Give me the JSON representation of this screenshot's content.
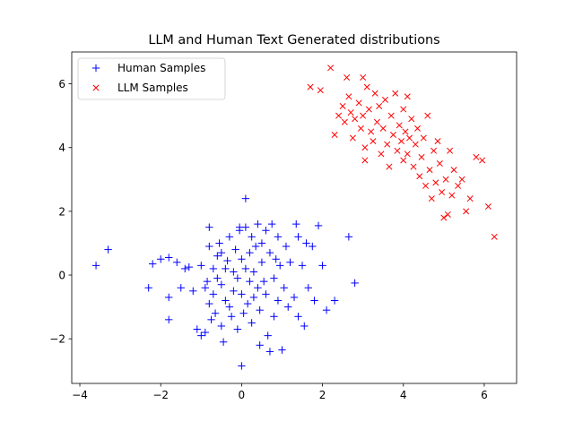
{
  "chart_data": {
    "type": "scatter",
    "title": "LLM and Human Text Generated distributions",
    "xlabel": "",
    "ylabel": "",
    "xlim": [
      -4.2,
      6.8
    ],
    "ylim": [
      -3.4,
      7.0
    ],
    "xticks": [
      -4,
      -2,
      0,
      2,
      4,
      6
    ],
    "yticks": [
      -2,
      0,
      2,
      4,
      6
    ],
    "xtick_labels": [
      "−4",
      "−2",
      "0",
      "2",
      "4",
      "6"
    ],
    "ytick_labels": [
      "−2",
      "0",
      "2",
      "4",
      "6"
    ],
    "grid": false,
    "legend_position": "top-left",
    "series": [
      {
        "name": "Human Samples",
        "marker": "+",
        "color": "#0000ff",
        "points": [
          [
            -3.6,
            0.3
          ],
          [
            -3.3,
            0.8
          ],
          [
            -2.3,
            -0.4
          ],
          [
            -2.2,
            0.35
          ],
          [
            -2.0,
            0.5
          ],
          [
            -1.8,
            0.55
          ],
          [
            -1.8,
            -0.7
          ],
          [
            -1.8,
            -1.4
          ],
          [
            -1.6,
            0.4
          ],
          [
            -1.5,
            -0.4
          ],
          [
            -1.4,
            0.2
          ],
          [
            -1.3,
            0.25
          ],
          [
            -1.2,
            -0.5
          ],
          [
            -1.1,
            -1.7
          ],
          [
            -1.0,
            0.3
          ],
          [
            -1.0,
            -1.9
          ],
          [
            -0.9,
            -0.4
          ],
          [
            -0.9,
            -1.8
          ],
          [
            -0.85,
            -0.2
          ],
          [
            -0.8,
            1.5
          ],
          [
            -0.8,
            0.9
          ],
          [
            -0.8,
            -0.9
          ],
          [
            -0.75,
            -1.4
          ],
          [
            -0.7,
            0.2
          ],
          [
            -0.7,
            -0.6
          ],
          [
            -0.65,
            -1.2
          ],
          [
            -0.6,
            0.6
          ],
          [
            -0.6,
            -0.1
          ],
          [
            -0.55,
            1.0
          ],
          [
            -0.5,
            0.7
          ],
          [
            -0.5,
            -0.3
          ],
          [
            -0.5,
            -1.6
          ],
          [
            -0.45,
            -2.1
          ],
          [
            -0.4,
            0.2
          ],
          [
            -0.4,
            -0.8
          ],
          [
            -0.35,
            0.45
          ],
          [
            -0.3,
            1.2
          ],
          [
            -0.3,
            -1.0
          ],
          [
            -0.25,
            -1.3
          ],
          [
            -0.2,
            0.1
          ],
          [
            -0.2,
            -0.5
          ],
          [
            -0.15,
            0.8
          ],
          [
            -0.1,
            -0.1
          ],
          [
            -0.1,
            -1.7
          ],
          [
            -0.05,
            1.5
          ],
          [
            -0.05,
            1.4
          ],
          [
            0.0,
            0.5
          ],
          [
            0.0,
            -0.6
          ],
          [
            0.0,
            -2.85
          ],
          [
            0.05,
            -1.2
          ],
          [
            0.1,
            1.5
          ],
          [
            0.1,
            0.2
          ],
          [
            0.1,
            2.4
          ],
          [
            0.15,
            -0.9
          ],
          [
            0.2,
            0.7
          ],
          [
            0.2,
            -0.2
          ],
          [
            0.25,
            1.2
          ],
          [
            0.25,
            -1.5
          ],
          [
            0.3,
            0.1
          ],
          [
            0.3,
            -0.7
          ],
          [
            0.35,
            0.9
          ],
          [
            0.4,
            1.6
          ],
          [
            0.4,
            -0.4
          ],
          [
            0.45,
            -1.1
          ],
          [
            0.45,
            -2.2
          ],
          [
            0.5,
            0.4
          ],
          [
            0.5,
            1.0
          ],
          [
            0.55,
            -0.2
          ],
          [
            0.6,
            1.4
          ],
          [
            0.6,
            -0.6
          ],
          [
            0.65,
            -1.9
          ],
          [
            0.7,
            0.7
          ],
          [
            0.7,
            -2.4
          ],
          [
            0.75,
            1.6
          ],
          [
            0.8,
            -0.1
          ],
          [
            0.8,
            -1.3
          ],
          [
            0.85,
            0.5
          ],
          [
            0.9,
            1.2
          ],
          [
            0.9,
            -0.8
          ],
          [
            0.95,
            0.3
          ],
          [
            1.0,
            -2.35
          ],
          [
            1.05,
            -0.4
          ],
          [
            1.1,
            0.9
          ],
          [
            1.15,
            -1.0
          ],
          [
            1.2,
            0.4
          ],
          [
            1.3,
            -0.7
          ],
          [
            1.35,
            1.6
          ],
          [
            1.4,
            1.2
          ],
          [
            1.4,
            -1.3
          ],
          [
            1.5,
            0.3
          ],
          [
            1.55,
            -1.6
          ],
          [
            1.6,
            1.0
          ],
          [
            1.65,
            -0.4
          ],
          [
            1.75,
            0.9
          ],
          [
            1.8,
            -0.8
          ],
          [
            1.9,
            1.55
          ],
          [
            2.0,
            0.3
          ],
          [
            2.1,
            -1.1
          ],
          [
            2.3,
            -0.8
          ],
          [
            2.65,
            1.2
          ],
          [
            2.8,
            -0.25
          ]
        ]
      },
      {
        "name": "LLM Samples",
        "marker": "x",
        "color": "#ff0000",
        "points": [
          [
            1.7,
            5.9
          ],
          [
            1.95,
            5.8
          ],
          [
            2.2,
            6.5
          ],
          [
            2.3,
            4.4
          ],
          [
            2.4,
            5.0
          ],
          [
            2.5,
            5.3
          ],
          [
            2.55,
            4.8
          ],
          [
            2.6,
            6.2
          ],
          [
            2.65,
            5.6
          ],
          [
            2.7,
            5.1
          ],
          [
            2.75,
            4.3
          ],
          [
            2.8,
            4.9
          ],
          [
            2.9,
            5.4
          ],
          [
            2.95,
            4.6
          ],
          [
            3.0,
            6.2
          ],
          [
            3.0,
            5.0
          ],
          [
            3.05,
            4.0
          ],
          [
            3.05,
            3.6
          ],
          [
            3.1,
            5.9
          ],
          [
            3.15,
            5.2
          ],
          [
            3.2,
            4.5
          ],
          [
            3.25,
            4.2
          ],
          [
            3.3,
            5.7
          ],
          [
            3.35,
            4.8
          ],
          [
            3.4,
            5.3
          ],
          [
            3.45,
            3.8
          ],
          [
            3.5,
            4.6
          ],
          [
            3.55,
            5.5
          ],
          [
            3.6,
            4.1
          ],
          [
            3.65,
            3.4
          ],
          [
            3.7,
            5.0
          ],
          [
            3.75,
            4.4
          ],
          [
            3.8,
            5.7
          ],
          [
            3.85,
            3.9
          ],
          [
            3.9,
            4.7
          ],
          [
            3.95,
            4.2
          ],
          [
            4.0,
            5.2
          ],
          [
            4.0,
            3.6
          ],
          [
            4.05,
            4.5
          ],
          [
            4.1,
            5.6
          ],
          [
            4.1,
            3.8
          ],
          [
            4.15,
            4.3
          ],
          [
            4.2,
            4.9
          ],
          [
            4.25,
            3.4
          ],
          [
            4.3,
            4.1
          ],
          [
            4.35,
            4.6
          ],
          [
            4.4,
            3.1
          ],
          [
            4.45,
            3.7
          ],
          [
            4.5,
            4.3
          ],
          [
            4.55,
            2.8
          ],
          [
            4.6,
            5.0
          ],
          [
            4.65,
            3.3
          ],
          [
            4.7,
            2.4
          ],
          [
            4.75,
            3.9
          ],
          [
            4.8,
            2.9
          ],
          [
            4.85,
            4.2
          ],
          [
            4.9,
            3.5
          ],
          [
            4.95,
            2.6
          ],
          [
            5.0,
            1.8
          ],
          [
            5.05,
            3.0
          ],
          [
            5.1,
            1.9
          ],
          [
            5.15,
            3.9
          ],
          [
            5.2,
            2.5
          ],
          [
            5.25,
            3.3
          ],
          [
            5.35,
            2.8
          ],
          [
            5.45,
            3.0
          ],
          [
            5.55,
            2.0
          ],
          [
            5.65,
            2.4
          ],
          [
            5.8,
            3.7
          ],
          [
            5.95,
            3.6
          ],
          [
            6.1,
            2.15
          ],
          [
            6.25,
            1.2
          ]
        ]
      }
    ]
  }
}
